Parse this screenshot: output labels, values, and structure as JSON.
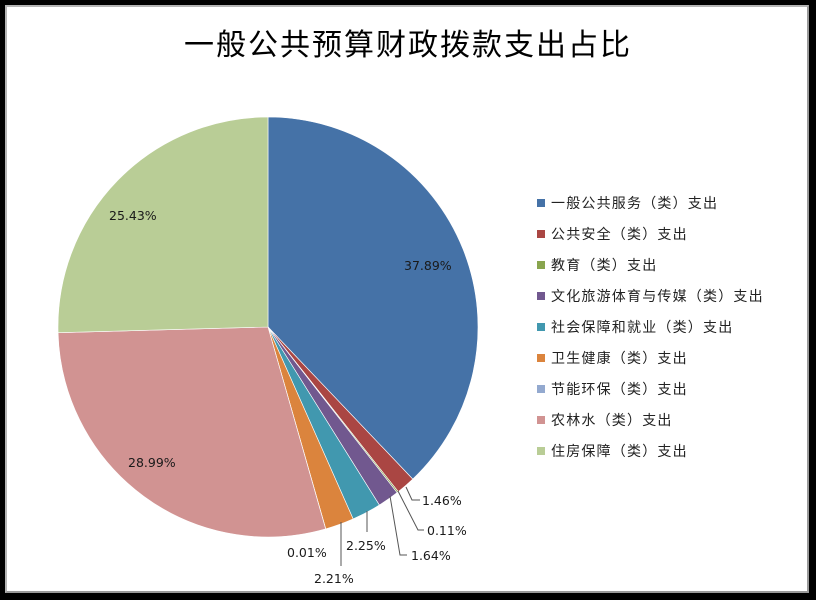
{
  "chart_data": {
    "type": "pie",
    "title": "一般公共预算财政拨款支出占比",
    "start_angle_deg": 0,
    "direction": "clockwise",
    "legend_position": "right",
    "categories": [
      "一般公共服务（类）支出",
      "公共安全（类）支出",
      "教育（类）支出",
      "文化旅游体育与传媒（类）支出",
      "社会保障和就业（类）支出",
      "卫生健康（类）支出",
      "节能环保（类）支出",
      "农林水（类）支出",
      "住房保障（类）支出"
    ],
    "values": [
      37.89,
      1.46,
      0.11,
      1.64,
      2.25,
      2.21,
      0.01,
      28.99,
      25.43
    ],
    "labels": [
      "37.89%",
      "1.46%",
      "0.11%",
      "1.64%",
      "2.25%",
      "2.21%",
      "0.01%",
      "28.99%",
      "25.43%"
    ],
    "colors": [
      "#4572A7",
      "#AA4643",
      "#89A54E",
      "#71588F",
      "#4198AF",
      "#DB843D",
      "#93A9CF",
      "#D19392",
      "#B9CD96"
    ],
    "unit": "%"
  },
  "legend": {
    "items": [
      {
        "label": "一般公共服务（类）支出",
        "color": "#4572A7"
      },
      {
        "label": "公共安全（类）支出",
        "color": "#AA4643"
      },
      {
        "label": "教育（类）支出",
        "color": "#89A54E"
      },
      {
        "label": "文化旅游体育与传媒（类）支出",
        "color": "#71588F"
      },
      {
        "label": "社会保障和就业（类）支出",
        "color": "#4198AF"
      },
      {
        "label": "卫生健康（类）支出",
        "color": "#DB843D"
      },
      {
        "label": "节能环保（类）支出",
        "color": "#93A9CF"
      },
      {
        "label": "农林水（类）支出",
        "color": "#D19392"
      },
      {
        "label": "住房保障（类）支出",
        "color": "#B9CD96"
      }
    ]
  }
}
